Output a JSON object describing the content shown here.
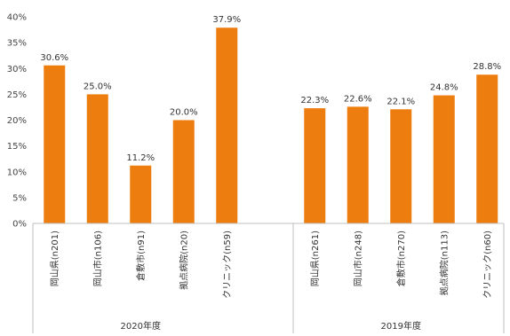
{
  "chart_data": {
    "type": "bar",
    "color": "#ED7D0E",
    "ylim": [
      0,
      40
    ],
    "y_ticks": [
      0,
      5,
      10,
      15,
      20,
      25,
      30,
      35,
      40
    ],
    "y_tick_suffix": "%",
    "grid": false,
    "groups": [
      {
        "name": "2020年度",
        "categories": [
          "岡山県(n201)",
          "岡山市(n106)",
          "倉敷市(n91)",
          "拠点病院(n20)",
          "クリニック(n59)"
        ],
        "values": [
          30.6,
          25.0,
          11.2,
          20.0,
          37.9
        ],
        "labels": [
          "30.6%",
          "25.0%",
          "11.2%",
          "20.0%",
          "37.9%"
        ]
      },
      {
        "name": "2019年度",
        "categories": [
          "岡山県(n261)",
          "岡山市(n248)",
          "倉敷市(n270)",
          "拠点病院(n113)",
          "クリニック(n60)"
        ],
        "values": [
          22.3,
          22.6,
          22.1,
          24.8,
          28.8
        ],
        "labels": [
          "22.3%",
          "22.6%",
          "22.1%",
          "24.8%",
          "28.8%"
        ]
      }
    ]
  }
}
